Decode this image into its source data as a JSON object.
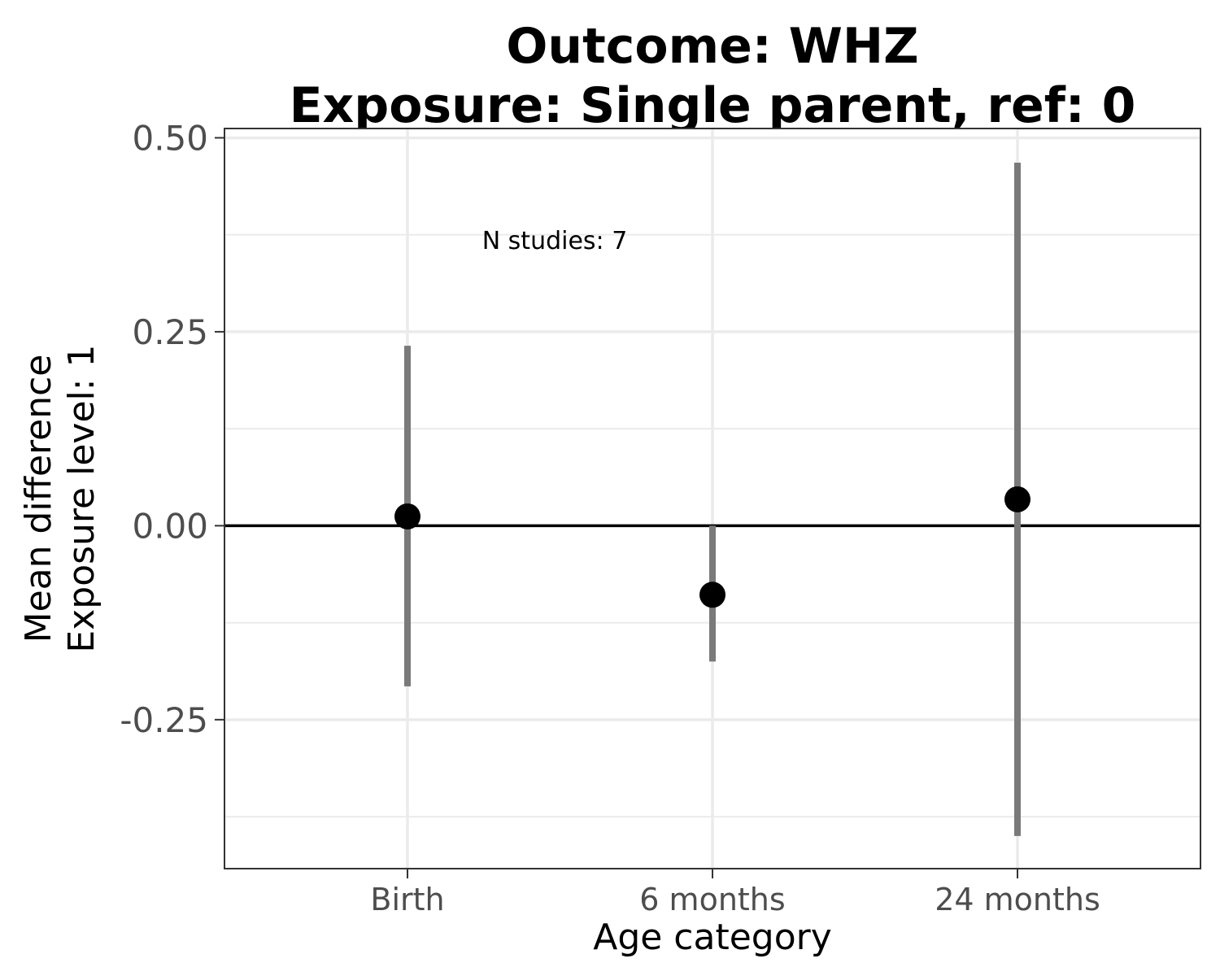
{
  "chart_data": {
    "type": "scatter",
    "title_lines": [
      "Outcome: WHZ",
      "Exposure: Single parent, ref: 0"
    ],
    "xlabel": "Age category",
    "ylabel_lines": [
      "Mean difference",
      "Exposure level: 1"
    ],
    "categories": [
      "Birth",
      "6 months",
      "24 months"
    ],
    "series": [
      {
        "estimate": [
          0.012,
          -0.089,
          0.034
        ],
        "ci_lower": [
          -0.207,
          -0.175,
          -0.4
        ],
        "ci_upper": [
          0.232,
          0.0,
          0.468
        ]
      }
    ],
    "yticks": [
      -0.25,
      0.0,
      0.25,
      0.5
    ],
    "ytick_labels": [
      "-0.25",
      "0.00",
      "0.25",
      "0.50"
    ],
    "ylim": [
      -0.442,
      0.512
    ],
    "reference_line": 0,
    "annotation": "N studies: 7",
    "grid": true,
    "legend": "none",
    "colors": {
      "point": "#000000",
      "ci_bar": "#7a7a7a",
      "grid": "#ebebeb",
      "reference_line": "#000000"
    }
  }
}
